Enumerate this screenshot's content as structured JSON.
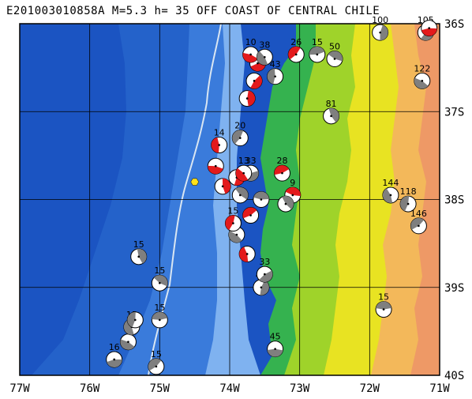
{
  "title": "E201003010858A M=5.3 h= 35 OFF COAST OF CENTRAL CHILE",
  "colors": {
    "ocean_deep": "#1b54c2",
    "ocean_mid": "#2f71d6",
    "ocean_shallow": "#7fb2f0",
    "trench": "#d9e6f2",
    "lowland": "#35b24f",
    "mid": "#9fd32a",
    "upland": "#e8e322",
    "high": "#f3b85a",
    "peak": "#ee9966",
    "compression": "#e31a1c",
    "grey_quadrant": "#7f7f7f",
    "event_marker": "#ffe11a"
  },
  "axes": {
    "lon_labels": [
      "77W",
      "76W",
      "75W",
      "74W",
      "73W",
      "72W",
      "71W"
    ],
    "lat_labels": [
      "36S",
      "37S",
      "38S",
      "39S",
      "40S"
    ]
  },
  "events": [
    {
      "lon": -75.65,
      "lat": -39.82,
      "depth": "16",
      "red": false
    },
    {
      "lon": -75.45,
      "lat": -39.62,
      "depth": "1",
      "red": false
    },
    {
      "lon": -75.4,
      "lat": -39.45,
      "depth": "15",
      "red": false
    },
    {
      "lon": -75.35,
      "lat": -39.37,
      "depth": "",
      "red": false
    },
    {
      "lon": -75.05,
      "lat": -39.9,
      "depth": "15",
      "red": false
    },
    {
      "lon": -75.0,
      "lat": -39.37,
      "depth": "15",
      "red": false
    },
    {
      "lon": -75.0,
      "lat": -38.95,
      "depth": "15",
      "red": false
    },
    {
      "lon": -75.3,
      "lat": -38.65,
      "depth": "15",
      "red": false
    },
    {
      "lon": -73.55,
      "lat": -39.0,
      "depth": "41",
      "red": false
    },
    {
      "lon": -73.5,
      "lat": -38.85,
      "depth": "33",
      "red": false
    },
    {
      "lon": -73.35,
      "lat": -39.7,
      "depth": "45",
      "red": false
    },
    {
      "lon": -73.9,
      "lat": -38.4,
      "depth": "12",
      "red": false
    },
    {
      "lon": -73.75,
      "lat": -38.62,
      "depth": "",
      "red": true
    },
    {
      "lon": -73.95,
      "lat": -38.27,
      "depth": "15",
      "red": true
    },
    {
      "lon": -73.7,
      "lat": -38.18,
      "depth": "",
      "red": true
    },
    {
      "lon": -73.55,
      "lat": -38.0,
      "depth": "",
      "red": false
    },
    {
      "lon": -73.85,
      "lat": -37.95,
      "depth": "",
      "red": false
    },
    {
      "lon": -74.1,
      "lat": -37.85,
      "depth": "",
      "red": true
    },
    {
      "lon": -73.9,
      "lat": -37.75,
      "depth": "",
      "red": true
    },
    {
      "lon": -73.7,
      "lat": -37.7,
      "depth": "33",
      "red": false
    },
    {
      "lon": -74.2,
      "lat": -37.62,
      "depth": "",
      "red": true
    },
    {
      "lon": -73.8,
      "lat": -37.7,
      "depth": "13",
      "red": true
    },
    {
      "lon": -74.15,
      "lat": -37.38,
      "depth": "14",
      "red": true
    },
    {
      "lon": -73.85,
      "lat": -37.3,
      "depth": "20",
      "red": false
    },
    {
      "lon": -73.25,
      "lat": -37.7,
      "depth": "28",
      "red": true
    },
    {
      "lon": -73.1,
      "lat": -37.95,
      "depth": "9",
      "red": true
    },
    {
      "lon": -73.2,
      "lat": -38.05,
      "depth": "",
      "red": false
    },
    {
      "lon": -73.75,
      "lat": -36.85,
      "depth": "",
      "red": true
    },
    {
      "lon": -73.65,
      "lat": -36.65,
      "depth": "",
      "red": true
    },
    {
      "lon": -73.6,
      "lat": -36.45,
      "depth": "",
      "red": true
    },
    {
      "lon": -73.7,
      "lat": -36.35,
      "depth": "10",
      "red": true
    },
    {
      "lon": -73.5,
      "lat": -36.38,
      "depth": "38",
      "red": false
    },
    {
      "lon": -73.35,
      "lat": -36.6,
      "depth": "43",
      "red": false
    },
    {
      "lon": -73.05,
      "lat": -36.35,
      "depth": "26",
      "red": true
    },
    {
      "lon": -72.75,
      "lat": -36.35,
      "depth": "15",
      "red": false
    },
    {
      "lon": -72.5,
      "lat": -36.4,
      "depth": "50",
      "red": false
    },
    {
      "lon": -72.55,
      "lat": -37.05,
      "depth": "81",
      "red": false
    },
    {
      "lon": -71.85,
      "lat": -36.1,
      "depth": "100",
      "red": false
    },
    {
      "lon": -71.2,
      "lat": -36.1,
      "depth": "105",
      "red": false
    },
    {
      "lon": -71.15,
      "lat": -36.05,
      "depth": "",
      "red": true
    },
    {
      "lon": -71.25,
      "lat": -36.65,
      "depth": "122",
      "red": false
    },
    {
      "lon": -71.7,
      "lat": -37.95,
      "depth": "144",
      "red": false
    },
    {
      "lon": -71.45,
      "lat": -38.05,
      "depth": "118",
      "red": false
    },
    {
      "lon": -71.3,
      "lat": -38.3,
      "depth": "146",
      "red": false
    },
    {
      "lon": -71.8,
      "lat": -39.25,
      "depth": "15",
      "red": false
    }
  ],
  "star": {
    "lon": -74.5,
    "lat": -37.8
  }
}
